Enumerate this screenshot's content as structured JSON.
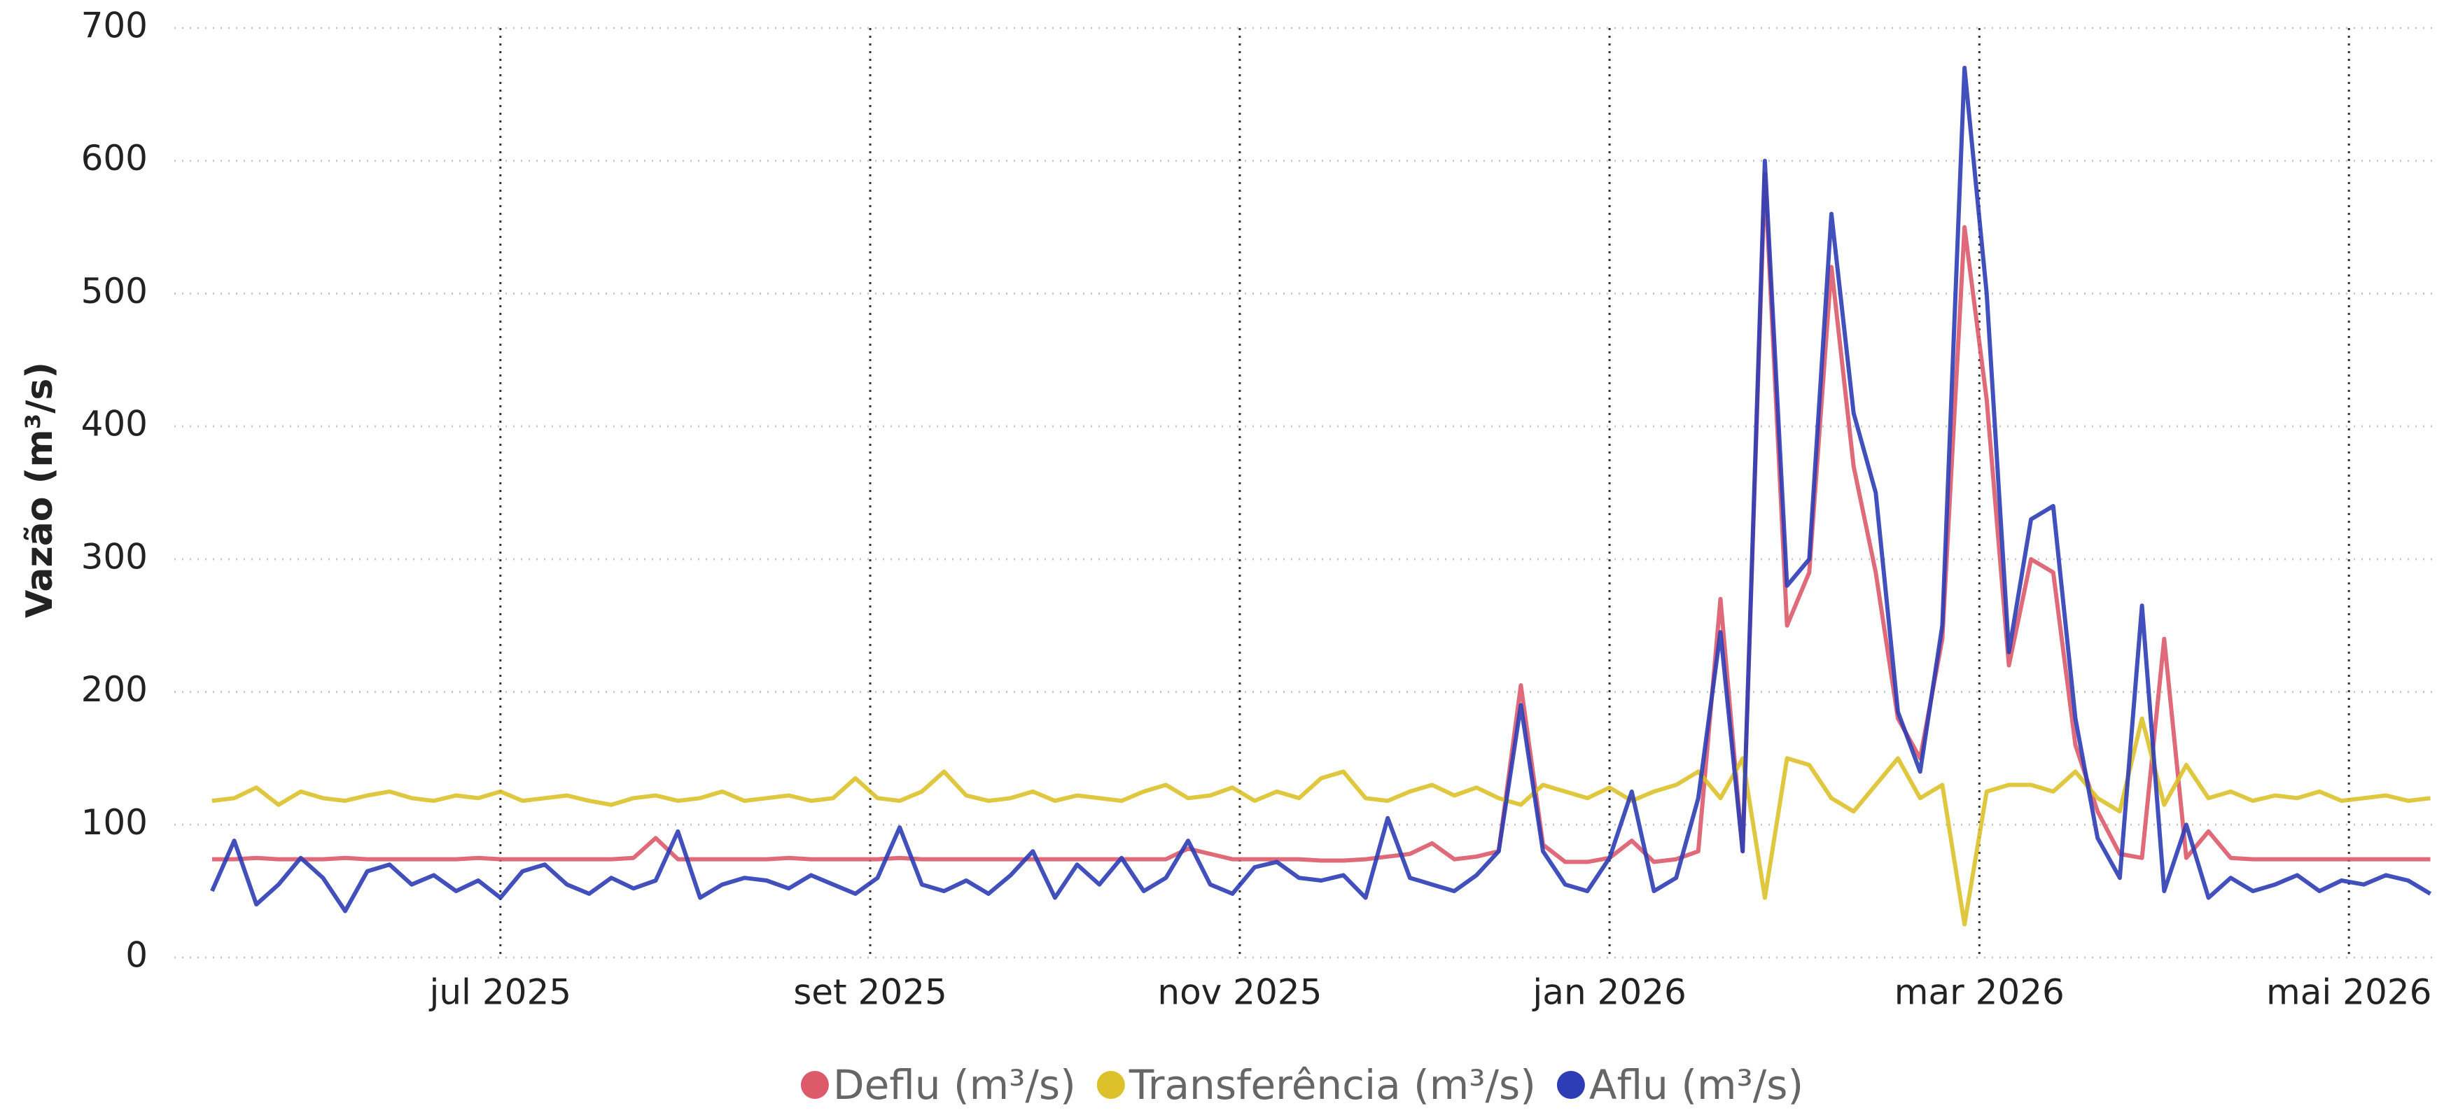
{
  "chart_data": {
    "type": "line",
    "y_label": "Vazão (m³/s)",
    "x": [
      2025.37,
      2025.38,
      2025.39,
      2025.4,
      2025.41,
      2025.42,
      2025.43,
      2025.44,
      2025.45,
      2025.46,
      2025.47,
      2025.48,
      2025.49,
      2025.5,
      2025.51,
      2025.52,
      2025.53,
      2025.54,
      2025.55,
      2025.56,
      2025.57,
      2025.58,
      2025.59,
      2025.6,
      2025.61,
      2025.62,
      2025.63,
      2025.64,
      2025.65,
      2025.66,
      2025.67,
      2025.68,
      2025.69,
      2025.7,
      2025.71,
      2025.72,
      2025.73,
      2025.74,
      2025.75,
      2025.76,
      2025.77,
      2025.78,
      2025.79,
      2025.8,
      2025.81,
      2025.82,
      2025.83,
      2025.84,
      2025.85,
      2025.86,
      2025.87,
      2025.88,
      2025.89,
      2025.9,
      2025.91,
      2025.92,
      2025.93,
      2025.94,
      2025.95,
      2025.96,
      2025.97,
      2025.98,
      2025.99,
      2026.0,
      2026.01,
      2026.02,
      2026.03,
      2026.04,
      2026.05,
      2026.06,
      2026.07,
      2026.08,
      2026.09,
      2026.1,
      2026.11,
      2026.12,
      2026.13,
      2026.14,
      2026.15,
      2026.16,
      2026.17,
      2026.18,
      2026.19,
      2026.2,
      2026.21,
      2026.22,
      2026.23,
      2026.24,
      2026.25,
      2026.26,
      2026.27,
      2026.28,
      2026.29,
      2026.3,
      2026.31,
      2026.32,
      2026.33,
      2026.34,
      2026.35,
      2026.36,
      2026.37
    ],
    "series": [
      {
        "name": "Deflu (m³/s)",
        "color": "#dc5a6a",
        "values": [
          74,
          74,
          75,
          74,
          74,
          74,
          75,
          74,
          74,
          74,
          74,
          74,
          75,
          74,
          74,
          74,
          74,
          74,
          74,
          75,
          90,
          74,
          74,
          74,
          74,
          74,
          75,
          74,
          74,
          74,
          74,
          75,
          74,
          74,
          74,
          74,
          74,
          74,
          74,
          74,
          74,
          74,
          74,
          74,
          82,
          78,
          74,
          74,
          74,
          74,
          73,
          73,
          74,
          76,
          78,
          86,
          74,
          76,
          80,
          205,
          85,
          72,
          72,
          75,
          88,
          72,
          74,
          80,
          270,
          80,
          590,
          250,
          290,
          520,
          370,
          290,
          180,
          150,
          240,
          550,
          420,
          220,
          300,
          290,
          160,
          110,
          78,
          75,
          240,
          75,
          95,
          75,
          74,
          74,
          74,
          74,
          74,
          74,
          74,
          74,
          74
        ]
      },
      {
        "name": "Transferência (m³/s)",
        "color": "#dcc12a",
        "values": [
          118,
          120,
          128,
          115,
          125,
          120,
          118,
          122,
          125,
          120,
          118,
          122,
          120,
          125,
          118,
          120,
          122,
          118,
          115,
          120,
          122,
          118,
          120,
          125,
          118,
          120,
          122,
          118,
          120,
          135,
          120,
          118,
          125,
          140,
          122,
          118,
          120,
          125,
          118,
          122,
          120,
          118,
          125,
          130,
          120,
          122,
          128,
          118,
          125,
          120,
          135,
          140,
          120,
          118,
          125,
          130,
          122,
          128,
          120,
          115,
          130,
          125,
          120,
          128,
          118,
          125,
          130,
          140,
          120,
          150,
          45,
          150,
          145,
          120,
          110,
          130,
          150,
          120,
          130,
          25,
          125,
          130,
          130,
          125,
          140,
          120,
          110,
          180,
          115,
          145,
          120,
          125,
          118,
          122,
          120,
          125,
          118,
          120,
          122,
          118,
          120
        ]
      },
      {
        "name": "Aflu (m³/s)",
        "color": "#2d3db5",
        "values": [
          50,
          88,
          40,
          55,
          75,
          60,
          35,
          65,
          70,
          55,
          62,
          50,
          58,
          45,
          65,
          70,
          55,
          48,
          60,
          52,
          58,
          95,
          45,
          55,
          60,
          58,
          52,
          62,
          55,
          48,
          60,
          98,
          55,
          50,
          58,
          48,
          62,
          80,
          45,
          70,
          55,
          75,
          50,
          60,
          88,
          55,
          48,
          68,
          72,
          60,
          58,
          62,
          45,
          105,
          60,
          55,
          50,
          62,
          80,
          190,
          80,
          55,
          50,
          75,
          125,
          50,
          60,
          120,
          245,
          80,
          600,
          280,
          300,
          560,
          410,
          350,
          185,
          140,
          250,
          670,
          500,
          230,
          330,
          340,
          180,
          90,
          60,
          265,
          50,
          100,
          45,
          60,
          50,
          55,
          62,
          50,
          58,
          55,
          62,
          58,
          48
        ]
      }
    ],
    "xlim": [
      2025.353,
      2026.373
    ],
    "xticks": [
      {
        "value": 2025.5,
        "label": "jul 2025"
      },
      {
        "value": 2025.6667,
        "label": "set 2025"
      },
      {
        "value": 2025.8333,
        "label": "nov 2025"
      },
      {
        "value": 2026.0,
        "label": "jan 2026"
      },
      {
        "value": 2026.1667,
        "label": "mar 2026"
      },
      {
        "value": 2026.3333,
        "label": "mai 2026"
      }
    ],
    "ylim": [
      0,
      700
    ],
    "yticks": [
      0,
      100,
      200,
      300,
      400,
      500,
      600,
      700
    ],
    "grid": true,
    "legend": "bottom"
  }
}
